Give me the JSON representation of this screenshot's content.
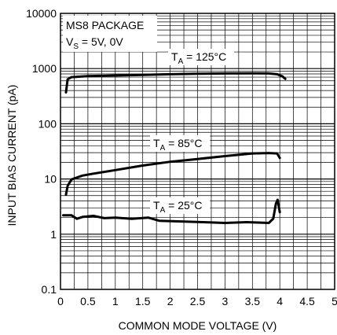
{
  "chart_data": {
    "type": "line",
    "xlabel": "COMMON MODE VOLTAGE (V)",
    "ylabel": "INPUT BIAS CURRENT (pA)",
    "xlim": [
      0,
      5
    ],
    "ylim": [
      0.1,
      10000
    ],
    "yscale": "log",
    "grid": true,
    "x_ticks": [
      "0",
      "0.5",
      "1",
      "1.5",
      "2",
      "2.5",
      "3",
      "3.5",
      "4",
      "4.5",
      "5"
    ],
    "y_ticks": [
      "0.1",
      "1",
      "10",
      "100",
      "1000",
      "10000"
    ],
    "annotations": {
      "package": "MS8 PACKAGE",
      "supply_main": "V",
      "supply_sub": "S",
      "supply_value": " = 5V, 0V"
    },
    "series": [
      {
        "label_main": "T",
        "label_sub": "A",
        "label_value": " = 125°C",
        "points": [
          [
            0.1,
            370
          ],
          [
            0.13,
            640
          ],
          [
            0.2,
            700
          ],
          [
            0.5,
            730
          ],
          [
            1,
            750
          ],
          [
            1.5,
            770
          ],
          [
            2,
            790
          ],
          [
            2.5,
            805
          ],
          [
            3,
            815
          ],
          [
            3.5,
            820
          ],
          [
            3.8,
            815
          ],
          [
            3.95,
            790
          ],
          [
            4.05,
            720
          ],
          [
            4.1,
            650
          ]
        ]
      },
      {
        "label_main": "T",
        "label_sub": "A",
        "label_value": " = 85°C",
        "points": [
          [
            0.1,
            5.2
          ],
          [
            0.13,
            7.5
          ],
          [
            0.2,
            9.8
          ],
          [
            0.4,
            11.5
          ],
          [
            0.6,
            12.5
          ],
          [
            1,
            14.5
          ],
          [
            1.5,
            17.5
          ],
          [
            2,
            20.5
          ],
          [
            2.5,
            23
          ],
          [
            3,
            26
          ],
          [
            3.5,
            29
          ],
          [
            3.8,
            29.5
          ],
          [
            3.95,
            29
          ],
          [
            4.0,
            24
          ]
        ]
      },
      {
        "label_main": "T",
        "label_sub": "A",
        "label_value": " = 25°C",
        "points": [
          [
            0.05,
            2.2
          ],
          [
            0.2,
            2.2
          ],
          [
            0.3,
            1.9
          ],
          [
            0.4,
            2.05
          ],
          [
            0.6,
            2.15
          ],
          [
            0.8,
            1.95
          ],
          [
            1,
            2.0
          ],
          [
            1.3,
            1.9
          ],
          [
            1.6,
            2.0
          ],
          [
            1.8,
            1.75
          ],
          [
            2.2,
            1.7
          ],
          [
            2.6,
            1.65
          ],
          [
            3,
            1.6
          ],
          [
            3.4,
            1.65
          ],
          [
            3.8,
            1.6
          ],
          [
            3.88,
            1.9
          ],
          [
            3.93,
            3.6
          ],
          [
            3.96,
            4.2
          ],
          [
            4.0,
            2.5
          ]
        ]
      }
    ]
  }
}
